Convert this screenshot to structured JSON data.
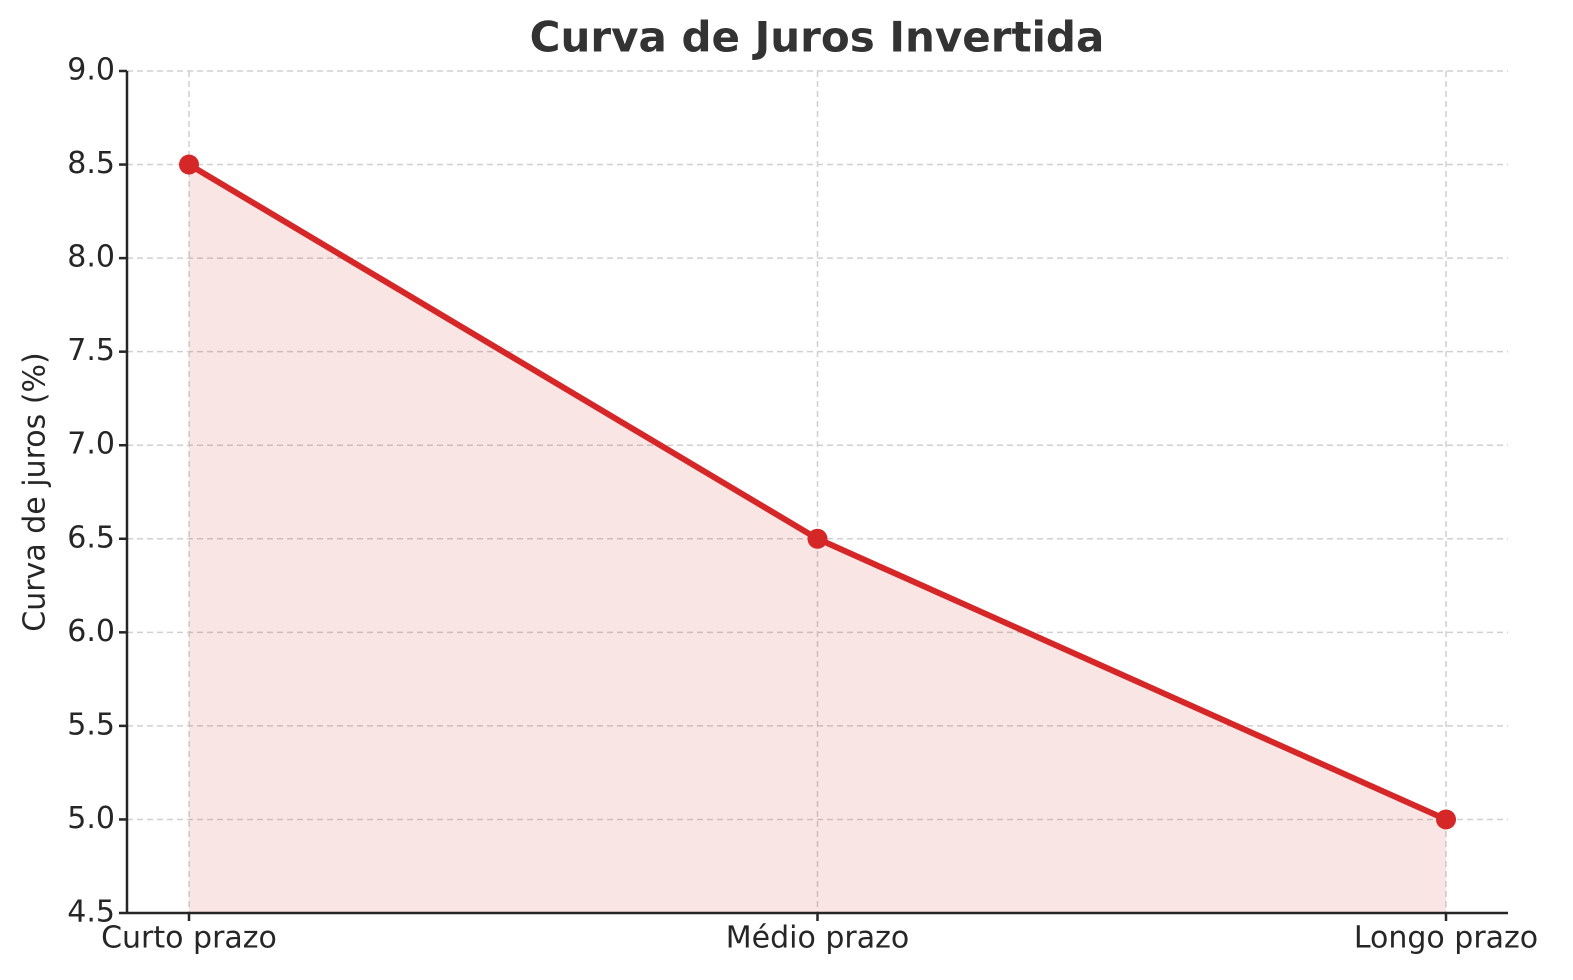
{
  "chart_data": {
    "type": "line",
    "title": "Curva de Juros Invertida",
    "y_label": "Curva de juros (%)",
    "categories": [
      "Curto prazo",
      "Médio prazo",
      "Longo prazo"
    ],
    "values": [
      8.5,
      6.5,
      5.0
    ],
    "color": "#d62728",
    "fill_area": true,
    "ylim": [
      4.5,
      9.0
    ],
    "yticks": [
      4.5,
      {
        "value": 5.0,
        "label": "5.0"
      },
      5.5,
      {
        "value": 6.0,
        "label": "6.0"
      },
      6.5,
      {
        "value": 7.0,
        "label": "7.0"
      },
      7.5,
      {
        "value": 8.0,
        "label": "8.0"
      },
      8.5,
      {
        "value": 9.0,
        "label": "9.0"
      }
    ],
    "grid": true
  }
}
